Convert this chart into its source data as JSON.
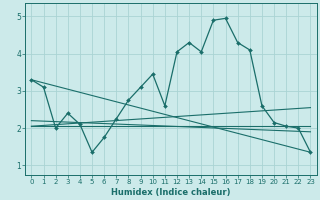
{
  "xlabel": "Humidex (Indice chaleur)",
  "background_color": "#cceaea",
  "line_color": "#1a6e6a",
  "grid_color": "#aad4d4",
  "xlim": [
    -0.5,
    23.5
  ],
  "ylim": [
    0.75,
    5.35
  ],
  "yticks": [
    1,
    2,
    3,
    4,
    5
  ],
  "xticks": [
    0,
    1,
    2,
    3,
    4,
    5,
    6,
    7,
    8,
    9,
    10,
    11,
    12,
    13,
    14,
    15,
    16,
    17,
    18,
    19,
    20,
    21,
    22,
    23
  ],
  "main_x": [
    0,
    1,
    2,
    3,
    4,
    5,
    6,
    7,
    8,
    9,
    10,
    11,
    12,
    13,
    14,
    15,
    16,
    17,
    18,
    19,
    20,
    21,
    22,
    23
  ],
  "main_y": [
    3.3,
    3.1,
    2.0,
    2.4,
    2.1,
    1.35,
    1.75,
    2.25,
    2.75,
    3.1,
    3.45,
    2.6,
    4.05,
    4.3,
    4.05,
    4.9,
    4.95,
    4.3,
    4.1,
    2.6,
    2.15,
    2.05,
    2.0,
    1.35
  ],
  "trend_lines": [
    {
      "x": [
        0,
        23
      ],
      "y": [
        3.3,
        1.35
      ]
    },
    {
      "x": [
        0,
        23
      ],
      "y": [
        2.05,
        2.55
      ]
    },
    {
      "x": [
        0,
        23
      ],
      "y": [
        2.05,
        2.05
      ]
    },
    {
      "x": [
        0,
        23
      ],
      "y": [
        2.2,
        1.9
      ]
    }
  ],
  "xlabel_fontsize": 6,
  "tick_fontsize": 5,
  "ytick_fontsize": 5.5
}
